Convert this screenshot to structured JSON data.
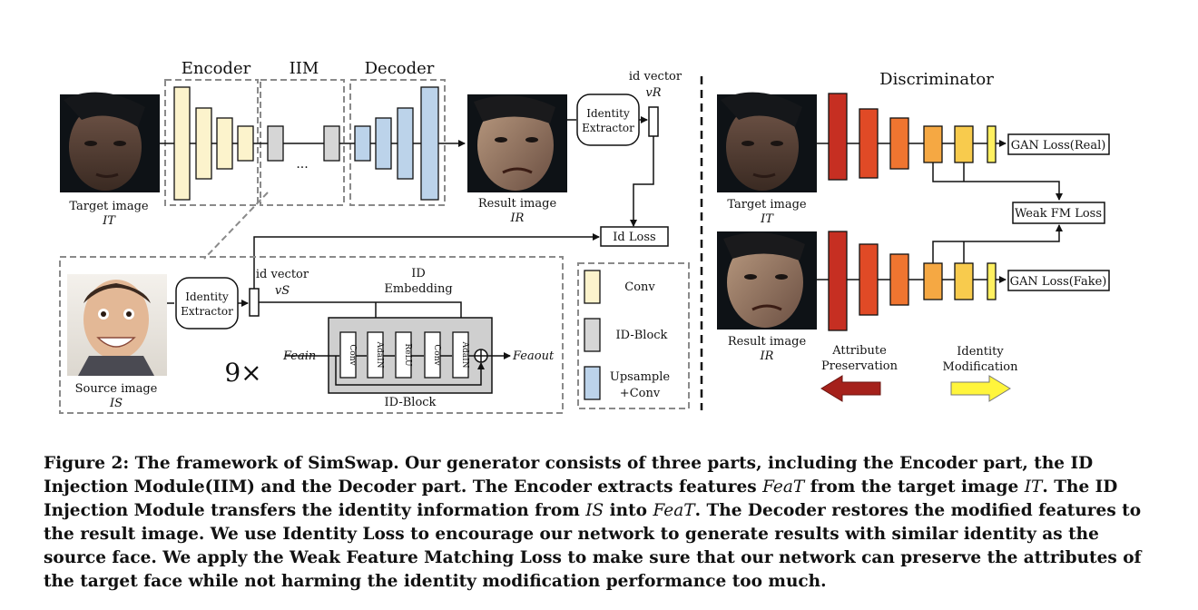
{
  "labels": {
    "encoder": "Encoder",
    "iim": "IIM",
    "decoder": "Decoder",
    "discriminator": "Discriminator",
    "id_vector_top": "id vector",
    "v_r": "vR",
    "identity_extractor_1": "Identity",
    "identity_extractor_2": "Extractor",
    "target_image": "Target image",
    "i_t": "IT",
    "result_image": "Result image",
    "i_r": "IR",
    "id_loss": "Id Loss",
    "dots": "...",
    "source_image": "Source image",
    "i_s": "IS",
    "id_vector_bottom": "id vector",
    "v_s": "vS",
    "id_embedding_1": "ID",
    "id_embedding_2": "Embedding",
    "fea_in": "Feain",
    "fea_out": "Feaout",
    "nine_x": "9×",
    "id_block": "ID-Block",
    "block_layers": [
      "Conv",
      "AdaIN",
      "ReLU",
      "Conv",
      "AdaIN"
    ],
    "legend_conv": "Conv",
    "legend_idblock": "ID-Block",
    "legend_upsample_1": "Upsample",
    "legend_upsample_2": "+Conv",
    "gan_loss_real": "GAN Loss(Real)",
    "gan_loss_fake": "GAN Loss(Fake)",
    "weak_fm_loss": "Weak FM Loss",
    "attr_pres_1": "Attribute",
    "attr_pres_2": "Preservation",
    "id_mod_1": "Identity",
    "id_mod_2": "Modification"
  },
  "colors": {
    "conv": "#fcf3cc",
    "idblock": "#d6d6d6",
    "upsample": "#bcd3ea",
    "disc": [
      "#c62f22",
      "#e04a26",
      "#ef7530",
      "#f5a843",
      "#f8cb4d",
      "#fff060"
    ],
    "arrow_red": "#a5211b",
    "arrow_yellow": "#fff53c"
  },
  "caption": {
    "p1": "Figure 2: The framework of SimSwap. Our generator consists of three parts, including the Encoder part, the ID Injection Module(IIM) and the Decoder part. The Encoder extracts features ",
    "m1": "FeaT",
    "p2": " from the target image ",
    "m2": "IT",
    "p3": ". The ID Injection Module transfers the identity information from ",
    "m3": "IS",
    "p4": " into ",
    "m4": "FeaT",
    "p5": ". The Decoder restores the modified features to the result image. We use Identity Loss to encourage our network to generate results with similar identity as the source face. We apply the Weak Feature Matching Loss to make sure that our network can preserve the attributes of the target face while not harming the identity modification performance too much."
  }
}
